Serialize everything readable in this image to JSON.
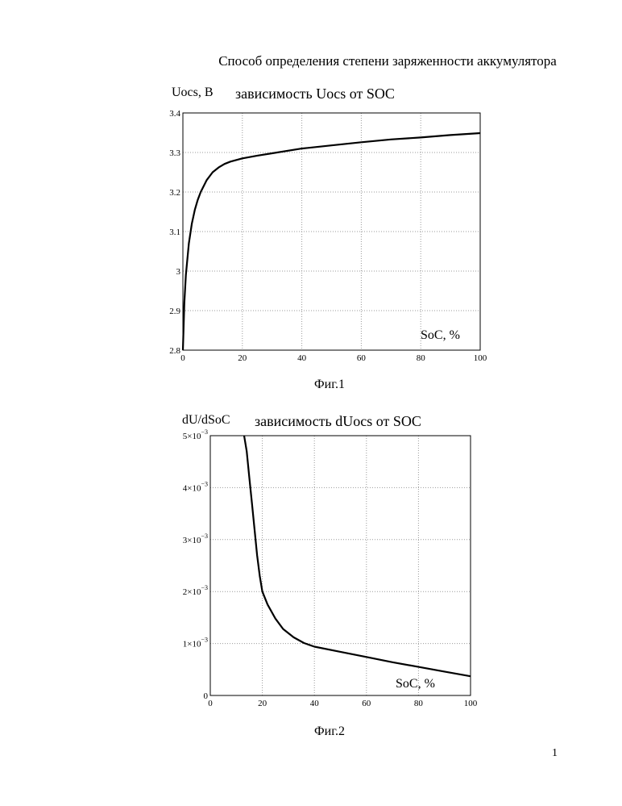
{
  "page": {
    "title": "Способ определения степени заряженности аккумулятора",
    "page_number": "1"
  },
  "chart_data": [
    {
      "type": "line",
      "caption": "Фиг.1",
      "title": "зависимость Uocs от SOC",
      "ylabel": "Uocs, В",
      "xlabel": "SoC, %",
      "xlim": [
        0,
        100
      ],
      "ylim": [
        2.8,
        3.4
      ],
      "xticks": [
        "0",
        "20",
        "40",
        "60",
        "80",
        "100"
      ],
      "yticks": [
        "2.8",
        "2.9",
        "3",
        "3.1",
        "3.2",
        "3.3",
        "3.4"
      ],
      "grid": "dotted",
      "series": [
        {
          "x": [
            0,
            0.5,
            1,
            2,
            3,
            4,
            5,
            6,
            8,
            10,
            12,
            14,
            16,
            18,
            20,
            25,
            30,
            40,
            50,
            60,
            70,
            80,
            90,
            100
          ],
          "y": [
            2.8,
            2.92,
            2.99,
            3.07,
            3.12,
            3.155,
            3.18,
            3.2,
            3.23,
            3.25,
            3.262,
            3.271,
            3.277,
            3.281,
            3.285,
            3.292,
            3.298,
            3.31,
            3.318,
            3.326,
            3.333,
            3.338,
            3.344,
            3.349
          ]
        }
      ]
    },
    {
      "type": "line",
      "caption": "Фиг.2",
      "title": "зависимость dUocs от SOC",
      "ylabel": "dU/dSoC",
      "xlabel": "SoC, %",
      "xlim": [
        0,
        100
      ],
      "ylim": [
        0,
        0.005
      ],
      "xticks": [
        "0",
        "20",
        "40",
        "60",
        "80",
        "100"
      ],
      "yticks": [
        "0",
        "1×10",
        "2×10",
        "3×10",
        "4×10",
        "5×10"
      ],
      "ytick_exponent": "−3",
      "grid": "dotted",
      "series": [
        {
          "x": [
            13,
            14,
            15,
            16,
            17,
            18,
            19,
            20,
            22,
            25,
            28,
            32,
            36,
            40,
            50,
            60,
            70,
            80,
            90,
            100
          ],
          "y": [
            0.005,
            0.0047,
            0.0042,
            0.0037,
            0.0032,
            0.0027,
            0.0023,
            0.002,
            0.00175,
            0.00148,
            0.00128,
            0.00112,
            0.00101,
            0.00094,
            0.00084,
            0.00074,
            0.00064,
            0.00055,
            0.00046,
            0.00037
          ]
        }
      ]
    }
  ]
}
